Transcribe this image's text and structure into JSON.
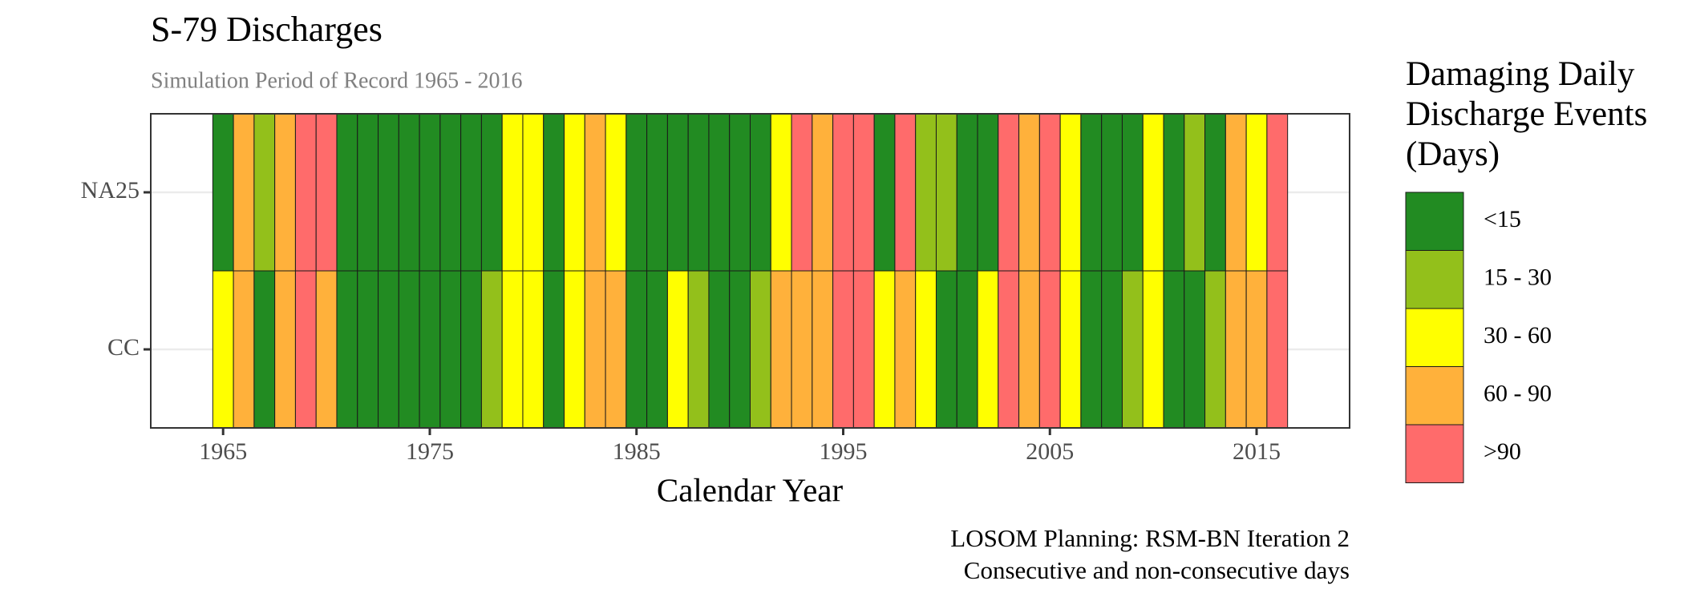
{
  "chart_data": {
    "type": "heatmap",
    "title": "S-79 Discharges",
    "subtitle": "Simulation Period of Record 1965 - 2016",
    "xlabel": "Calendar Year",
    "caption": [
      "LOSOM Planning: RSM-BN Iteration 2",
      "Consecutive and non-consecutive days"
    ],
    "legend_title": [
      "Damaging Daily",
      "Discharge Events",
      "(Days)"
    ],
    "legend_labels": [
      "<15",
      "15 - 30",
      "30 - 60",
      "60 - 90",
      ">90"
    ],
    "legend_colors": [
      "#228b22",
      "#93c01b",
      "#ffff00",
      "#ffb13b",
      "#ff6b6b"
    ],
    "x": [
      1965,
      1966,
      1967,
      1968,
      1969,
      1970,
      1971,
      1972,
      1973,
      1974,
      1975,
      1976,
      1977,
      1978,
      1979,
      1980,
      1981,
      1982,
      1983,
      1984,
      1985,
      1986,
      1987,
      1988,
      1989,
      1990,
      1991,
      1992,
      1993,
      1994,
      1995,
      1996,
      1997,
      1998,
      1999,
      2000,
      2001,
      2002,
      2003,
      2004,
      2005,
      2006,
      2007,
      2008,
      2009,
      2010,
      2011,
      2012,
      2013,
      2014,
      2015,
      2016
    ],
    "xlim": [
      1961.5,
      2019.5
    ],
    "xticks": [
      1965,
      1975,
      1985,
      1995,
      2005,
      2015
    ],
    "grid": true,
    "series": [
      {
        "name": "NA25",
        "values": [
          "<15",
          "60 - 90",
          "15 - 30",
          "60 - 90",
          ">90",
          ">90",
          "<15",
          "<15",
          "<15",
          "<15",
          "<15",
          "<15",
          "<15",
          "<15",
          "30 - 60",
          "30 - 60",
          "<15",
          "30 - 60",
          "60 - 90",
          "30 - 60",
          "<15",
          "<15",
          "<15",
          "<15",
          "<15",
          "<15",
          "<15",
          "30 - 60",
          ">90",
          "60 - 90",
          ">90",
          ">90",
          "<15",
          ">90",
          "15 - 30",
          "15 - 30",
          "<15",
          "<15",
          ">90",
          "60 - 90",
          ">90",
          "30 - 60",
          "<15",
          "<15",
          "<15",
          "30 - 60",
          "<15",
          "15 - 30",
          "<15",
          "60 - 90",
          "30 - 60",
          ">90"
        ]
      },
      {
        "name": "CC",
        "values": [
          "30 - 60",
          "60 - 90",
          "<15",
          "60 - 90",
          ">90",
          "60 - 90",
          "<15",
          "<15",
          "<15",
          "<15",
          "<15",
          "<15",
          "<15",
          "15 - 30",
          "30 - 60",
          "30 - 60",
          "<15",
          "30 - 60",
          "60 - 90",
          "60 - 90",
          "<15",
          "<15",
          "30 - 60",
          "15 - 30",
          "<15",
          "<15",
          "15 - 30",
          "60 - 90",
          "60 - 90",
          "60 - 90",
          ">90",
          ">90",
          "30 - 60",
          "60 - 90",
          "30 - 60",
          "<15",
          "<15",
          "30 - 60",
          ">90",
          "60 - 90",
          ">90",
          "30 - 60",
          "<15",
          "<15",
          "15 - 30",
          "30 - 60",
          "<15",
          "<15",
          "15 - 30",
          "60 - 90",
          "60 - 90",
          ">90"
        ]
      }
    ]
  }
}
